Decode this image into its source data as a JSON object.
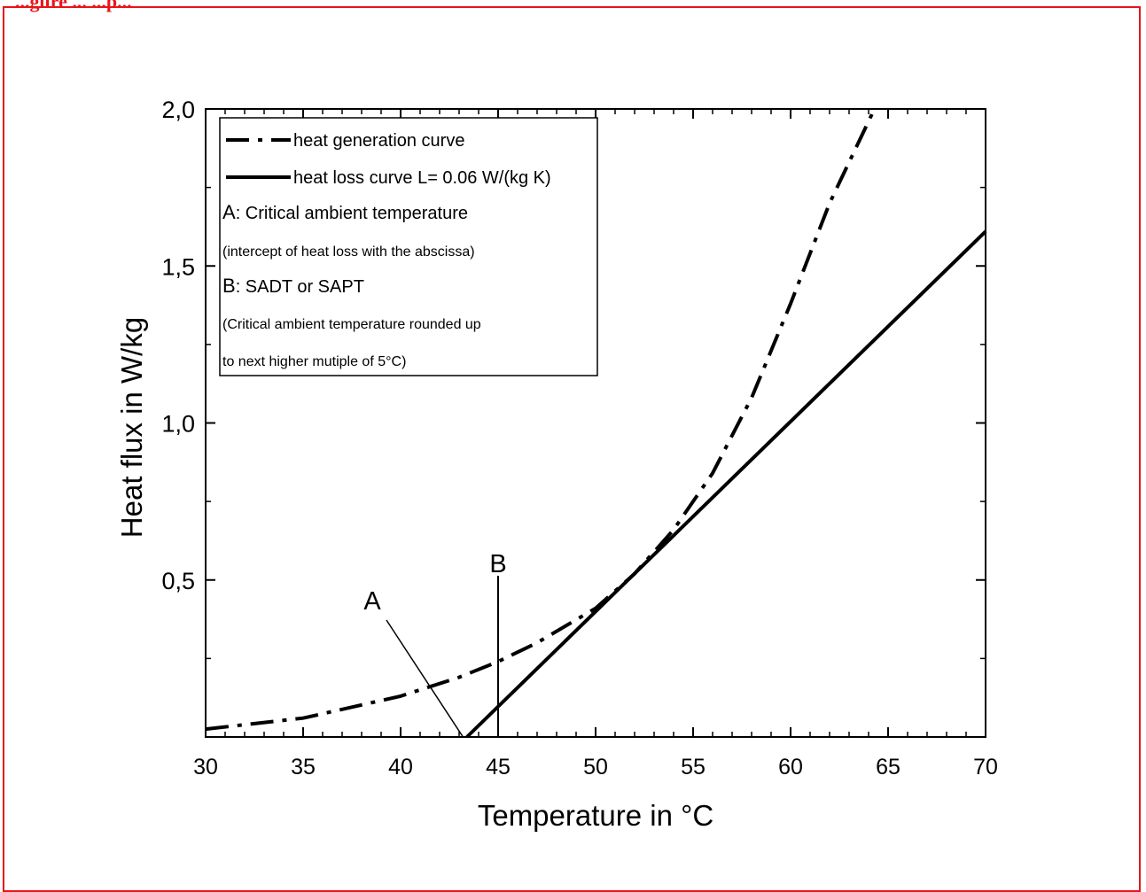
{
  "caption": "...gure ... ...p...",
  "chart_data": {
    "type": "line",
    "xlabel": "Temperature in °C",
    "ylabel": "Heat flux in W/kg",
    "xlim": [
      30,
      70
    ],
    "ylim": [
      0,
      2.0
    ],
    "xticks": [
      "30",
      "35",
      "40",
      "45",
      "50",
      "55",
      "60",
      "65",
      "70"
    ],
    "yticks": [
      "0,5",
      "1,0",
      "1,5",
      "2,0"
    ],
    "series": [
      {
        "name": "heat generation curve",
        "style": "dash-dot",
        "x": [
          30,
          35,
          40,
          43,
          45,
          47,
          50,
          52,
          54,
          56,
          58,
          60,
          62,
          64.3
        ],
        "y": [
          0.025,
          0.06,
          0.13,
          0.19,
          0.24,
          0.3,
          0.41,
          0.52,
          0.66,
          0.84,
          1.08,
          1.38,
          1.7,
          2.0
        ]
      },
      {
        "name": "heat loss curve L= 0.06 W/(kg K)",
        "style": "solid",
        "x": [
          43.4,
          70
        ],
        "y": [
          0.0,
          1.61
        ]
      }
    ],
    "legend": {
      "position": "top-left",
      "entries": [
        "heat generation curve",
        "heat loss curve L= 0.06 W/(kg K)"
      ],
      "notes": [
        {
          "key": "A",
          "text": ": Critical ambient temperature"
        },
        {
          "key": "",
          "text": "(intercept of heat loss with the abscissa)"
        },
        {
          "key": "B",
          "text": ": SADT or SAPT"
        },
        {
          "key": "",
          "text": "(Critical ambient temperature rounded up"
        },
        {
          "key": "",
          "text": "to next higher mutiple of 5°C)"
        }
      ]
    },
    "annotations": [
      {
        "label": "A",
        "x": 43.2,
        "y": 0.0
      },
      {
        "label": "B",
        "x": 45,
        "y": 0.0
      }
    ]
  }
}
